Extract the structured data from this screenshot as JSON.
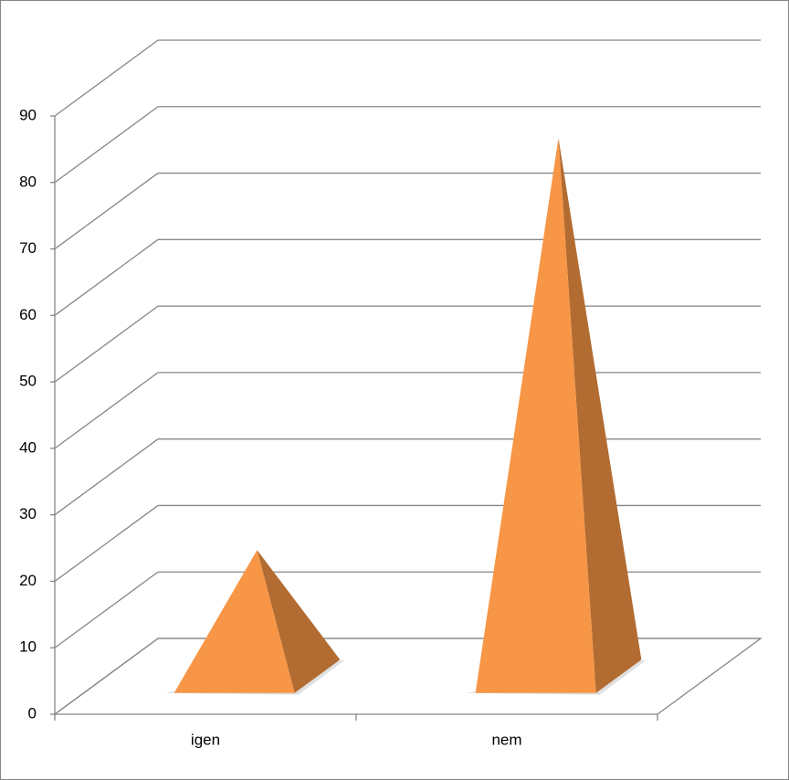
{
  "chart_data": {
    "type": "pyramid3d",
    "categories": [
      "igen",
      "nem"
    ],
    "values": [
      19,
      81
    ],
    "color": "#f79646",
    "ylim": [
      0,
      90
    ],
    "yticks": [
      0,
      10,
      20,
      30,
      40,
      50,
      60,
      70,
      80,
      90
    ],
    "grid": true
  }
}
